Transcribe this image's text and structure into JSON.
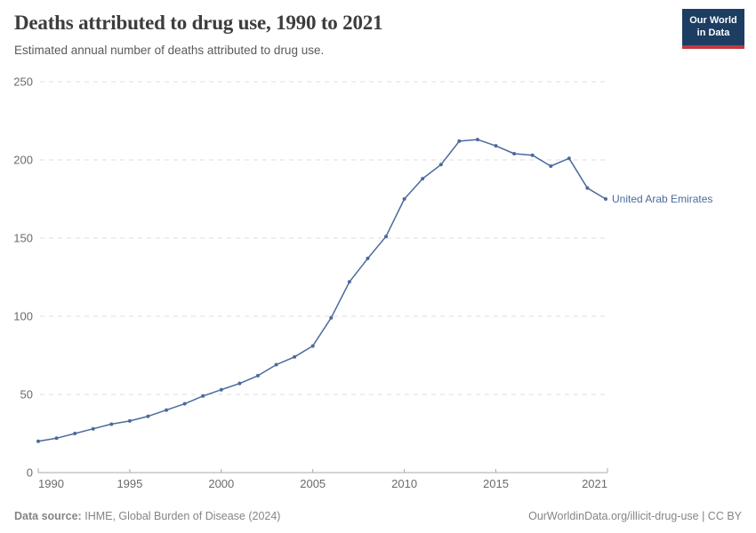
{
  "header": {
    "title": "Deaths attributed to drug use, 1990 to 2021",
    "subtitle": "Estimated annual number of deaths attributed to drug use."
  },
  "logo": {
    "line1": "Our World",
    "line2": "in Data"
  },
  "chart_data": {
    "type": "line",
    "title": "Deaths attributed to drug use, 1990 to 2021",
    "xlabel": "",
    "ylabel": "",
    "x": [
      1990,
      1991,
      1992,
      1993,
      1994,
      1995,
      1996,
      1997,
      1998,
      1999,
      2000,
      2001,
      2002,
      2003,
      2004,
      2005,
      2006,
      2007,
      2008,
      2009,
      2010,
      2011,
      2012,
      2013,
      2014,
      2015,
      2016,
      2017,
      2018,
      2019,
      2020,
      2021
    ],
    "series": [
      {
        "name": "United Arab Emirates",
        "color": "#4c6a9c",
        "values": [
          20,
          22,
          25,
          28,
          31,
          33,
          36,
          40,
          44,
          49,
          53,
          57,
          62,
          69,
          74,
          81,
          99,
          122,
          137,
          151,
          175,
          188,
          197,
          212,
          213,
          209,
          204,
          203,
          196,
          201,
          182,
          175
        ]
      }
    ],
    "ylim": [
      0,
      250
    ],
    "yticks": [
      0,
      50,
      100,
      150,
      200,
      250
    ],
    "xticks": [
      1990,
      1995,
      2000,
      2005,
      2010,
      2015,
      2021
    ],
    "grid": "horizontal-dashed",
    "legend_position": "end-of-line-label",
    "marker": "dot"
  },
  "colors": {
    "line": "#4c6a9c",
    "grid": "#dddddd",
    "axis": "#a8a8a8",
    "tick_label": "#6b6b6b",
    "title": "#3d3d3d",
    "subtitle": "#5a5a5a",
    "footer": "#858585",
    "logo_bg": "#1d3d63",
    "logo_red": "#c0393f"
  },
  "footer": {
    "data_source_label": "Data source:",
    "data_source_value": "IHME, Global Burden of Disease (2024)",
    "right": "OurWorldinData.org/illicit-drug-use | CC BY"
  }
}
